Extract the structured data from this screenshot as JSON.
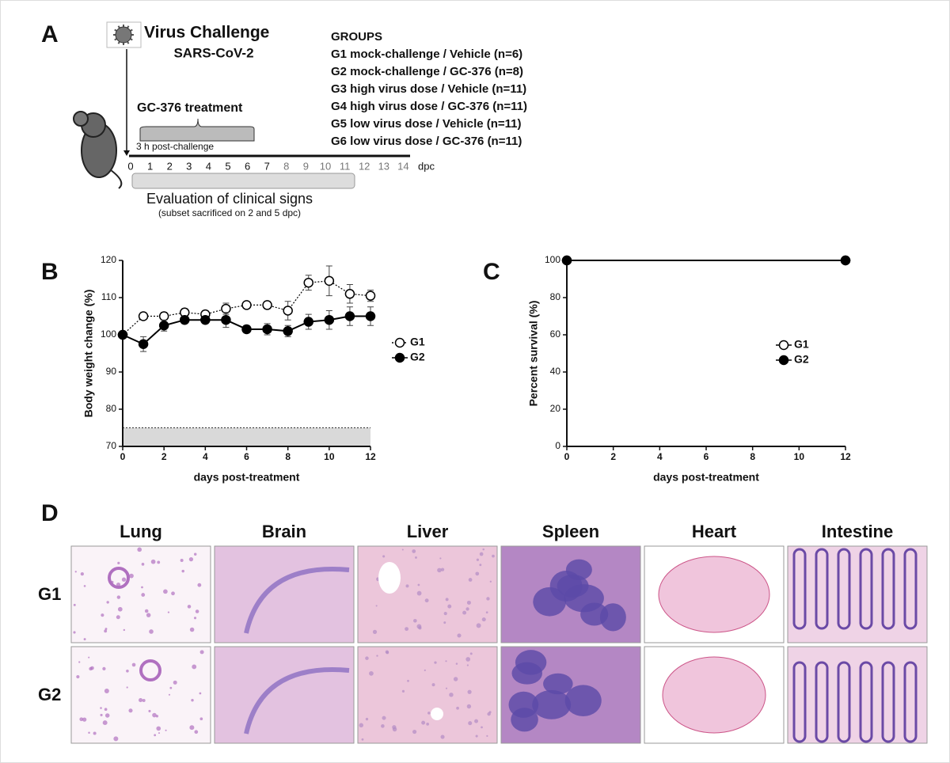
{
  "panel_a": {
    "label": "A",
    "title": "Virus Challenge",
    "subtitle": "SARS-CoV-2",
    "groups_title": "GROUPS",
    "groups": [
      "G1 mock-challenge / Vehicle (n=6)",
      "G2 mock-challenge / GC-376 (n=8)",
      "G3 high virus dose / Vehicle (n=11)",
      "G4 high virus dose / GC-376 (n=11)",
      "G5 low virus dose / Vehicle (n=11)",
      "G6 low virus dose / GC-376 (n=11)"
    ],
    "treatment": "GC-376 treatment",
    "treatment_note": "3 h post-challenge",
    "days": [
      0,
      1,
      2,
      3,
      4,
      5,
      6,
      7,
      8,
      9,
      10,
      11,
      12,
      13,
      14
    ],
    "days_unit": "dpc",
    "evaluation": "Evaluation of clinical signs",
    "evaluation_note": "(subset sacrificed on 2 and 5 dpc)"
  },
  "chart_data": [
    {
      "type": "line",
      "label": "B",
      "ylabel": "Body weight change  (%)",
      "xlabel": "days post-treatment",
      "x": [
        0,
        1,
        2,
        3,
        4,
        5,
        6,
        7,
        8,
        9,
        10,
        11,
        12
      ],
      "series": [
        {
          "name": "G1",
          "color": "#000000",
          "fill": "#ffffff",
          "dashed": true,
          "values": [
            100,
            105,
            105,
            106,
            105.5,
            107,
            108,
            108,
            106.5,
            114,
            114.5,
            111,
            110.5
          ],
          "errors": [
            0,
            0.5,
            1,
            1,
            1,
            1.5,
            0.8,
            1,
            2.5,
            2,
            4,
            2.5,
            1.5
          ]
        },
        {
          "name": "G2",
          "color": "#000000",
          "fill": "#000000",
          "dashed": false,
          "values": [
            100,
            97.5,
            102.5,
            104,
            104,
            104,
            101.5,
            101.5,
            101,
            103.5,
            104,
            105,
            105
          ],
          "errors": [
            0,
            2,
            1.5,
            1,
            1,
            2,
            1,
            1.5,
            1.5,
            2,
            2.5,
            2.5,
            2.5
          ]
        }
      ],
      "threshold": 75,
      "xlim": [
        0,
        12
      ],
      "ylim": [
        70,
        120
      ],
      "xticks": [
        0,
        2,
        4,
        6,
        8,
        10,
        12
      ],
      "yticks": [
        70,
        80,
        90,
        100,
        110,
        120
      ]
    },
    {
      "type": "line",
      "label": "C",
      "ylabel": "Percent survival (%)",
      "xlabel": "days post-treatment",
      "x": [
        0,
        12
      ],
      "series": [
        {
          "name": "G1",
          "color": "#000000",
          "fill": "#ffffff",
          "dashed": false,
          "values": [
            100,
            100
          ]
        },
        {
          "name": "G2",
          "color": "#000000",
          "fill": "#000000",
          "dashed": false,
          "values": [
            100,
            100
          ]
        }
      ],
      "xlim": [
        0,
        12
      ],
      "ylim": [
        0,
        100
      ],
      "xticks": [
        0,
        2,
        4,
        6,
        8,
        10,
        12
      ],
      "yticks": [
        0,
        20,
        40,
        60,
        80,
        100
      ]
    }
  ],
  "panel_d": {
    "label": "D",
    "columns": [
      "Lung",
      "Brain",
      "Liver",
      "Spleen",
      "Heart",
      "Intestine"
    ],
    "rows": [
      "G1",
      "G2"
    ]
  }
}
